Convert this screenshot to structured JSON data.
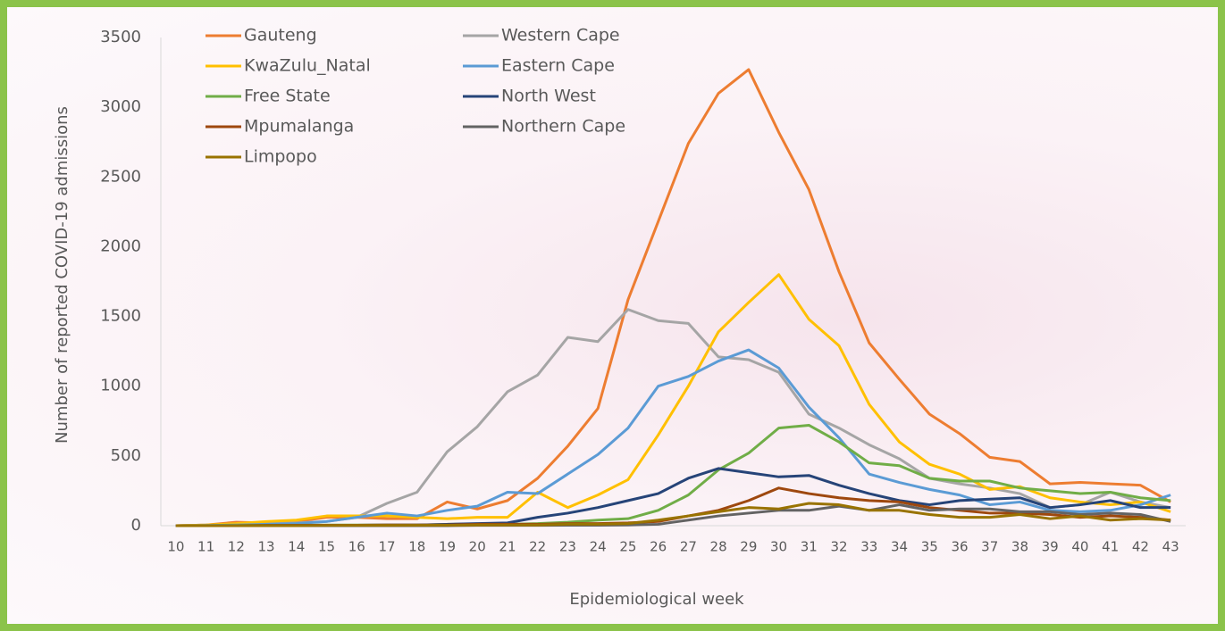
{
  "chart_data": {
    "type": "line",
    "x_label": "Epidemiological week",
    "y_label": "Number of reported COVID-19 admissions",
    "x": [
      10,
      11,
      12,
      13,
      14,
      15,
      16,
      17,
      18,
      19,
      20,
      21,
      22,
      23,
      24,
      25,
      26,
      27,
      28,
      29,
      30,
      31,
      32,
      33,
      34,
      35,
      36,
      37,
      38,
      39,
      40,
      41,
      42,
      43
    ],
    "xlim": [
      9.5,
      43.5
    ],
    "ylim": [
      0,
      3500
    ],
    "yticks": [
      0,
      500,
      1000,
      1500,
      2000,
      2500,
      3000,
      3500
    ],
    "series": [
      {
        "name": "Gauteng",
        "color": "#ed7d31",
        "values": [
          0,
          5,
          25,
          20,
          30,
          60,
          60,
          50,
          50,
          170,
          120,
          180,
          340,
          570,
          840,
          1620,
          2180,
          2740,
          3100,
          3270,
          2820,
          2410,
          1820,
          1310,
          1050,
          800,
          660,
          490,
          460,
          300,
          310,
          300,
          290,
          170
        ]
      },
      {
        "name": "Western Cape",
        "color": "#a5a5a5",
        "values": [
          0,
          5,
          10,
          15,
          20,
          30,
          60,
          160,
          240,
          530,
          710,
          960,
          1080,
          1350,
          1320,
          1550,
          1470,
          1450,
          1210,
          1190,
          1100,
          800,
          700,
          580,
          480,
          340,
          300,
          270,
          230,
          130,
          150,
          240,
          170,
          130
        ]
      },
      {
        "name": "KwaZulu_Natal",
        "color": "#ffc000",
        "values": [
          0,
          5,
          15,
          30,
          40,
          70,
          70,
          70,
          60,
          50,
          60,
          60,
          240,
          130,
          220,
          330,
          650,
          1000,
          1390,
          1600,
          1800,
          1480,
          1290,
          870,
          600,
          440,
          370,
          260,
          280,
          200,
          170,
          150,
          170,
          100
        ]
      },
      {
        "name": "Eastern Cape",
        "color": "#5b9bd5",
        "values": [
          0,
          2,
          5,
          10,
          15,
          30,
          60,
          90,
          70,
          110,
          140,
          240,
          230,
          370,
          510,
          700,
          1000,
          1070,
          1180,
          1260,
          1130,
          850,
          630,
          370,
          310,
          260,
          220,
          150,
          170,
          110,
          100,
          110,
          150,
          220
        ]
      },
      {
        "name": "Free State",
        "color": "#70ad47",
        "values": [
          0,
          0,
          2,
          2,
          3,
          5,
          5,
          5,
          5,
          10,
          10,
          10,
          15,
          25,
          40,
          50,
          110,
          220,
          400,
          520,
          700,
          720,
          600,
          450,
          430,
          340,
          320,
          320,
          270,
          250,
          230,
          240,
          200,
          180
        ]
      },
      {
        "name": "North West",
        "color": "#264478",
        "values": [
          0,
          0,
          0,
          2,
          2,
          3,
          3,
          5,
          5,
          10,
          15,
          20,
          60,
          90,
          130,
          180,
          230,
          340,
          410,
          380,
          350,
          360,
          290,
          230,
          180,
          150,
          180,
          190,
          200,
          130,
          150,
          180,
          130,
          130
        ]
      },
      {
        "name": "Mpumalanga",
        "color": "#9e480e",
        "values": [
          0,
          0,
          0,
          2,
          2,
          3,
          3,
          5,
          5,
          5,
          10,
          10,
          10,
          15,
          15,
          20,
          30,
          70,
          110,
          180,
          270,
          230,
          200,
          180,
          170,
          130,
          110,
          90,
          90,
          80,
          60,
          70,
          60,
          40
        ]
      },
      {
        "name": "Northern Cape",
        "color": "#636363",
        "values": [
          0,
          0,
          0,
          0,
          0,
          0,
          0,
          0,
          0,
          0,
          2,
          2,
          2,
          3,
          3,
          5,
          10,
          40,
          70,
          90,
          110,
          110,
          140,
          110,
          150,
          110,
          120,
          120,
          100,
          100,
          80,
          90,
          80,
          30
        ]
      },
      {
        "name": "Limpopo",
        "color": "#997300",
        "values": [
          0,
          0,
          0,
          0,
          0,
          2,
          2,
          2,
          3,
          3,
          5,
          5,
          5,
          10,
          10,
          15,
          40,
          70,
          100,
          130,
          120,
          160,
          150,
          110,
          110,
          80,
          60,
          60,
          80,
          50,
          70,
          40,
          50,
          40
        ]
      }
    ]
  }
}
